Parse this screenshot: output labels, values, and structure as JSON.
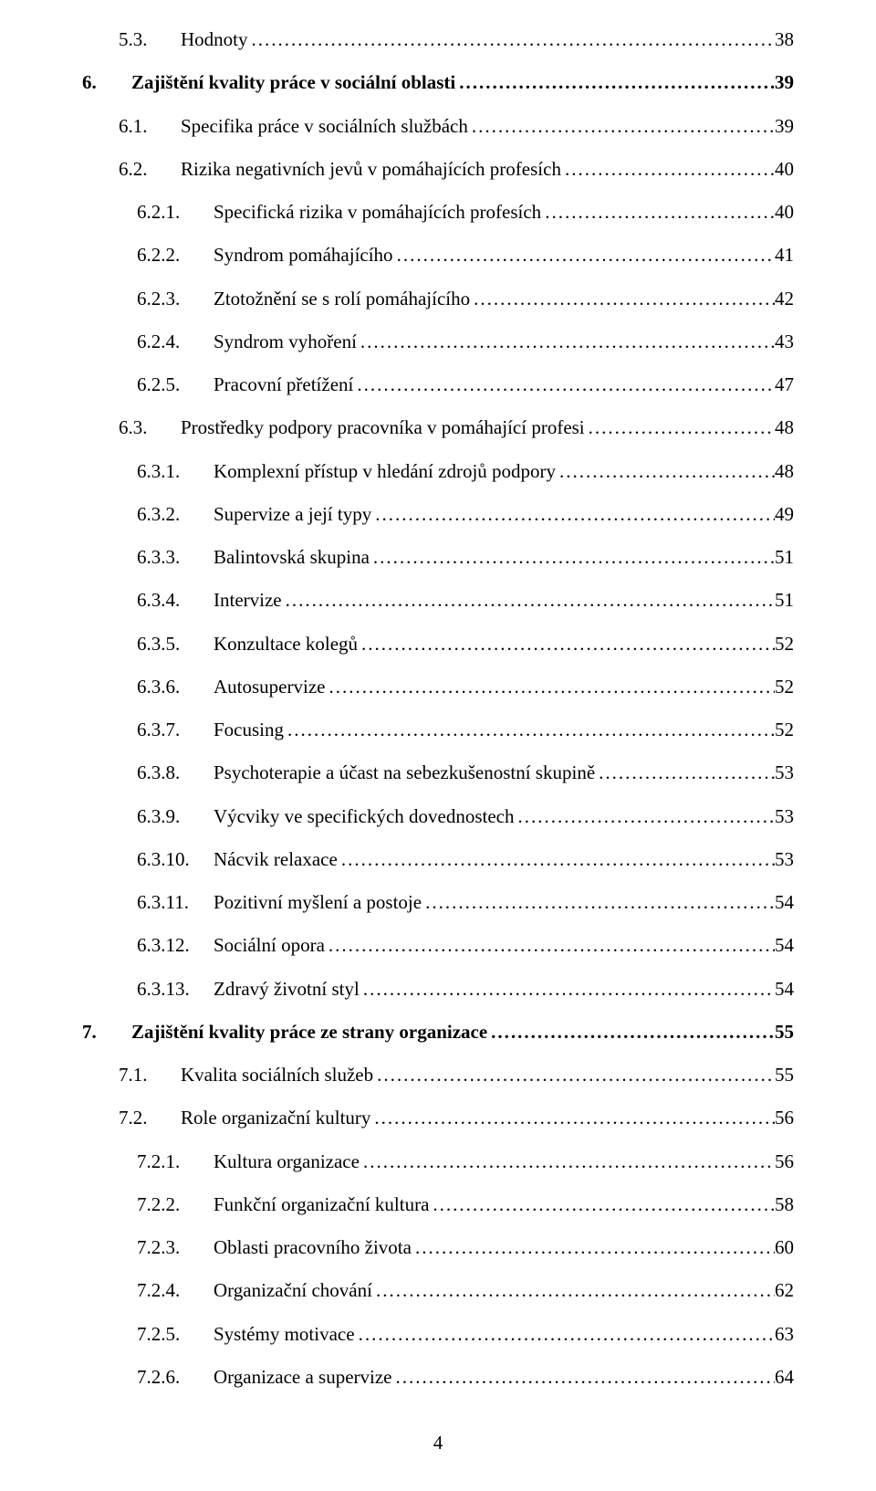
{
  "dots": "..................................................................................................................................................................................................",
  "entries": [
    {
      "level": "a",
      "indent": 1,
      "num": "5.3.",
      "title": "Hodnoty",
      "page": "38"
    },
    {
      "level": "b",
      "indent": 0,
      "num": "6.",
      "title": "Zajištění kvality práce v sociální oblasti",
      "page": "39"
    },
    {
      "level": "a",
      "indent": 1,
      "num": "6.1.",
      "title": "Specifika práce v sociálních službách",
      "page": "39"
    },
    {
      "level": "a",
      "indent": 1,
      "num": "6.2.",
      "title": "Rizika negativních jevů v pomáhajících profesích",
      "page": "40"
    },
    {
      "level": "d",
      "indent": 2,
      "num": "6.2.1.",
      "title": "Specifická rizika v pomáhajících profesích",
      "page": "40"
    },
    {
      "level": "d",
      "indent": 2,
      "num": "6.2.2.",
      "title": "Syndrom pomáhajícího",
      "page": "41"
    },
    {
      "level": "d",
      "indent": 2,
      "num": "6.2.3.",
      "title": "Ztotožnění se s rolí pomáhajícího",
      "page": "42"
    },
    {
      "level": "d",
      "indent": 2,
      "num": "6.2.4.",
      "title": "Syndrom vyhoření",
      "page": "43"
    },
    {
      "level": "d",
      "indent": 2,
      "num": "6.2.5.",
      "title": "Pracovní přetížení",
      "page": "47"
    },
    {
      "level": "a",
      "indent": 1,
      "num": "6.3.",
      "title": "Prostředky podpory pracovníka v pomáhající profesi",
      "page": "48"
    },
    {
      "level": "d",
      "indent": 2,
      "num": "6.3.1.",
      "title": "Komplexní přístup v hledání zdrojů podpory",
      "page": "48"
    },
    {
      "level": "d",
      "indent": 2,
      "num": "6.3.2.",
      "title": "Supervize a její typy",
      "page": "49"
    },
    {
      "level": "d",
      "indent": 2,
      "num": "6.3.3.",
      "title": "Balintovská skupina",
      "page": "51"
    },
    {
      "level": "d",
      "indent": 2,
      "num": "6.3.4.",
      "title": "Intervize",
      "page": "51"
    },
    {
      "level": "d",
      "indent": 2,
      "num": "6.3.5.",
      "title": "Konzultace kolegů",
      "page": "52"
    },
    {
      "level": "d",
      "indent": 2,
      "num": "6.3.6.",
      "title": "Autosupervize",
      "page": "52"
    },
    {
      "level": "d",
      "indent": 2,
      "num": "6.3.7.",
      "title": "Focusing",
      "page": "52"
    },
    {
      "level": "d",
      "indent": 2,
      "num": "6.3.8.",
      "title": "Psychoterapie a účast na sebezkušenostní skupině",
      "page": "53"
    },
    {
      "level": "d",
      "indent": 2,
      "num": "6.3.9.",
      "title": "Výcviky ve specifických dovednostech",
      "page": "53"
    },
    {
      "level": "d",
      "indent": 2,
      "num": "6.3.10.",
      "title": "Nácvik relaxace",
      "page": "53"
    },
    {
      "level": "d",
      "indent": 2,
      "num": "6.3.11.",
      "title": "Pozitivní myšlení a postoje",
      "page": "54"
    },
    {
      "level": "d",
      "indent": 2,
      "num": "6.3.12.",
      "title": "Sociální opora",
      "page": "54"
    },
    {
      "level": "d",
      "indent": 2,
      "num": "6.3.13.",
      "title": "Zdravý životní styl",
      "page": "54"
    },
    {
      "level": "b",
      "indent": 0,
      "num": "7.",
      "title": "Zajištění kvality práce ze strany organizace",
      "page": "55"
    },
    {
      "level": "a",
      "indent": 1,
      "num": "7.1.",
      "title": "Kvalita sociálních služeb",
      "page": "55"
    },
    {
      "level": "a",
      "indent": 1,
      "num": "7.2.",
      "title": "Role organizační kultury",
      "page": "56"
    },
    {
      "level": "d",
      "indent": 2,
      "num": "7.2.1.",
      "title": "Kultura organizace",
      "page": "56"
    },
    {
      "level": "d",
      "indent": 2,
      "num": "7.2.2.",
      "title": "Funkční organizační kultura",
      "page": "58"
    },
    {
      "level": "d",
      "indent": 2,
      "num": "7.2.3.",
      "title": "Oblasti pracovního života",
      "page": "60"
    },
    {
      "level": "d",
      "indent": 2,
      "num": "7.2.4.",
      "title": "Organizační chování",
      "page": "62"
    },
    {
      "level": "d",
      "indent": 2,
      "num": "7.2.5.",
      "title": "Systémy motivace",
      "page": "63"
    },
    {
      "level": "d",
      "indent": 2,
      "num": "7.2.6.",
      "title": "Organizace a supervize",
      "page": "64"
    }
  ],
  "footer_page": "4"
}
